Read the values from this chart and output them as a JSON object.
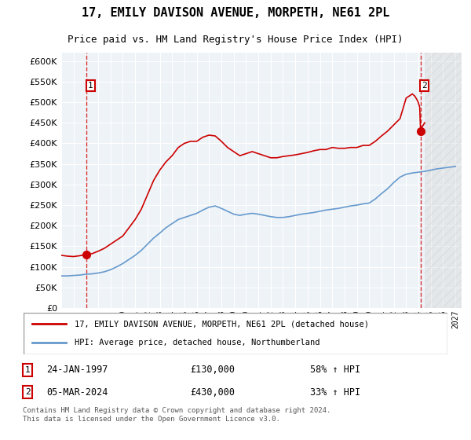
{
  "title": "17, EMILY DAVISON AVENUE, MORPETH, NE61 2PL",
  "subtitle": "Price paid vs. HM Land Registry's House Price Index (HPI)",
  "legend_line1": "17, EMILY DAVISON AVENUE, MORPETH, NE61 2PL (detached house)",
  "legend_line2": "HPI: Average price, detached house, Northumberland",
  "marker1_label": "1",
  "marker2_label": "2",
  "marker1_date": "24-JAN-1997",
  "marker1_price": "£130,000",
  "marker1_hpi": "58% ↑ HPI",
  "marker2_date": "05-MAR-2024",
  "marker2_price": "£430,000",
  "marker2_hpi": "33% ↑ HPI",
  "footer": "Contains HM Land Registry data © Crown copyright and database right 2024.\nThis data is licensed under the Open Government Licence v3.0.",
  "red_color": "#cc0000",
  "blue_color": "#6699cc",
  "bg_color": "#dde8f0",
  "plot_bg": "#eef3f8",
  "hatch_color": "#cccccc",
  "ylim": [
    0,
    620000
  ],
  "xlim_start": 1995.0,
  "xlim_end": 2027.5,
  "marker1_x": 1997.07,
  "marker2_x": 2024.17
}
